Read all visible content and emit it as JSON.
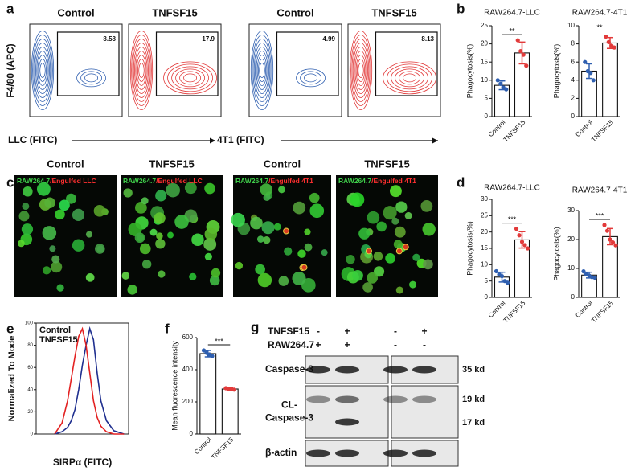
{
  "panel_labels": [
    "a",
    "b",
    "c",
    "d",
    "e",
    "f",
    "g"
  ],
  "panel_a": {
    "plots": [
      {
        "title": "Control",
        "gate": "8.58",
        "color": "#2f5fb0"
      },
      {
        "title": "TNFSF15",
        "gate": "17.9",
        "color": "#e23a3a"
      },
      {
        "title": "Control",
        "gate": "4.99",
        "color": "#2f5fb0"
      },
      {
        "title": "TNFSF15",
        "gate": "8.13",
        "color": "#e23a3a"
      }
    ],
    "ylabel": "F4/80 (APC)",
    "xlabels": [
      "LLC (FITC)",
      "4T1 (FITC)"
    ]
  },
  "panel_c": {
    "images": [
      {
        "title": "Control",
        "cell": "RAW264.7",
        "target": "/Engulfed LLC"
      },
      {
        "title": "TNFSF15",
        "cell": "RAW264.7",
        "target": "/Engulfed LLC"
      },
      {
        "title": "Control",
        "cell": "RAW264.7",
        "target": "/Engulfed 4T1"
      },
      {
        "title": "TNFSF15",
        "cell": "RAW264.7",
        "target": "/Engulfed 4T1"
      }
    ]
  },
  "panel_g": {
    "conditions": [
      {
        "name": "TNFSF15",
        "signs": [
          "-",
          "+",
          "-",
          "+"
        ]
      },
      {
        "name": "RAW264.7",
        "signs": [
          "+",
          "+",
          "-",
          "-"
        ]
      }
    ],
    "bands": [
      {
        "name_lines": [
          "Caspase-3"
        ],
        "kd": [
          "35 kd"
        ]
      },
      {
        "name_lines": [
          "CL-",
          "Caspase-3"
        ],
        "kd": [
          "19 kd",
          "17 kd"
        ]
      },
      {
        "name_lines": [
          "β-actin"
        ],
        "kd": []
      }
    ]
  },
  "chart_data": [
    {
      "type": "bar",
      "title": "RAW264.7-LLC",
      "ylabel": "Phagocytosis(%)",
      "categories": [
        "Control",
        "TNFSF15"
      ],
      "colors": [
        "#2f5fb0",
        "#e23a3a"
      ],
      "values": [
        8.6,
        17.5
      ],
      "errors": [
        1.2,
        3.0
      ],
      "points": [
        [
          10,
          9,
          8,
          7.5
        ],
        [
          21,
          18,
          17,
          14
        ]
      ],
      "annotation": "**",
      "ylim": [
        0,
        25
      ],
      "yticks": [
        0,
        5,
        10,
        15,
        20,
        25
      ]
    },
    {
      "type": "bar",
      "title": "RAW264.7-4T1",
      "ylabel": "Phagocytosis(%)",
      "categories": [
        "Control",
        "TNFSF15"
      ],
      "colors": [
        "#2f5fb0",
        "#e23a3a"
      ],
      "values": [
        5,
        8.1
      ],
      "errors": [
        0.8,
        0.6
      ],
      "points": [
        [
          6,
          5,
          4.8,
          4
        ],
        [
          8.8,
          8.2,
          7.8,
          7.6
        ]
      ],
      "annotation": "**",
      "ylim": [
        0,
        10
      ],
      "yticks": [
        0,
        2,
        4,
        6,
        8,
        10
      ]
    },
    {
      "type": "bar",
      "title": "RAW264.7-LLC",
      "ylabel": "Phagocytosis(%)",
      "categories": [
        "Control",
        "TNFSF15"
      ],
      "colors": [
        "#2f5fb0",
        "#e23a3a"
      ],
      "values": [
        6.2,
        17.6
      ],
      "errors": [
        1.5,
        2.5
      ],
      "points": [
        [
          8,
          7,
          6.5,
          5,
          4.5
        ],
        [
          21,
          19,
          17,
          16,
          15
        ]
      ],
      "annotation": "***",
      "ylim": [
        0,
        30
      ],
      "yticks": [
        0,
        5,
        10,
        15,
        20,
        25,
        30
      ]
    },
    {
      "type": "bar",
      "title": "RAW264.7-4T1",
      "ylabel": "Phagocytosis(%)",
      "categories": [
        "Control",
        "TNFSF15"
      ],
      "colors": [
        "#2f5fb0",
        "#e23a3a"
      ],
      "values": [
        7.7,
        21
      ],
      "errors": [
        1.0,
        2.8
      ],
      "points": [
        [
          9,
          8,
          7.5,
          7,
          6.8
        ],
        [
          25,
          23,
          20,
          19,
          18
        ]
      ],
      "annotation": "***",
      "ylim": [
        0,
        30
      ],
      "yticks": [
        0,
        10,
        20,
        30
      ]
    },
    {
      "type": "line",
      "xlabel": "SIRPα (FITC)",
      "ylabel": "Normalized To Mode",
      "x": [
        20,
        28,
        34,
        38,
        42,
        46,
        50,
        54,
        58,
        62,
        66,
        70,
        76,
        84,
        95
      ],
      "series": [
        {
          "name": "Control",
          "color": "#1f2f8f",
          "values": [
            0,
            2,
            6,
            12,
            22,
            40,
            62,
            80,
            95,
            85,
            55,
            30,
            12,
            3,
            0
          ]
        },
        {
          "name": "TNFSF15",
          "color": "#e32222",
          "values": [
            0,
            10,
            30,
            50,
            70,
            88,
            95,
            80,
            55,
            30,
            15,
            7,
            2,
            0,
            0
          ]
        }
      ],
      "xlim": [
        0,
        100
      ],
      "ylim": [
        0,
        100
      ],
      "yticks": [
        0,
        20,
        40,
        60,
        80,
        100
      ]
    },
    {
      "type": "bar",
      "ylabel": "Mean fluorescence intensity",
      "categories": [
        "Control",
        "TNFSF15"
      ],
      "colors": [
        "#2f5fb0",
        "#e23a3a"
      ],
      "values": [
        500,
        280
      ],
      "errors": [
        20,
        8
      ],
      "points": [
        [
          520,
          505,
          495,
          485
        ],
        [
          285,
          280,
          278,
          276
        ]
      ],
      "annotation": "***",
      "ylim": [
        0,
        600
      ],
      "yticks": [
        0,
        200,
        400,
        600
      ]
    }
  ]
}
